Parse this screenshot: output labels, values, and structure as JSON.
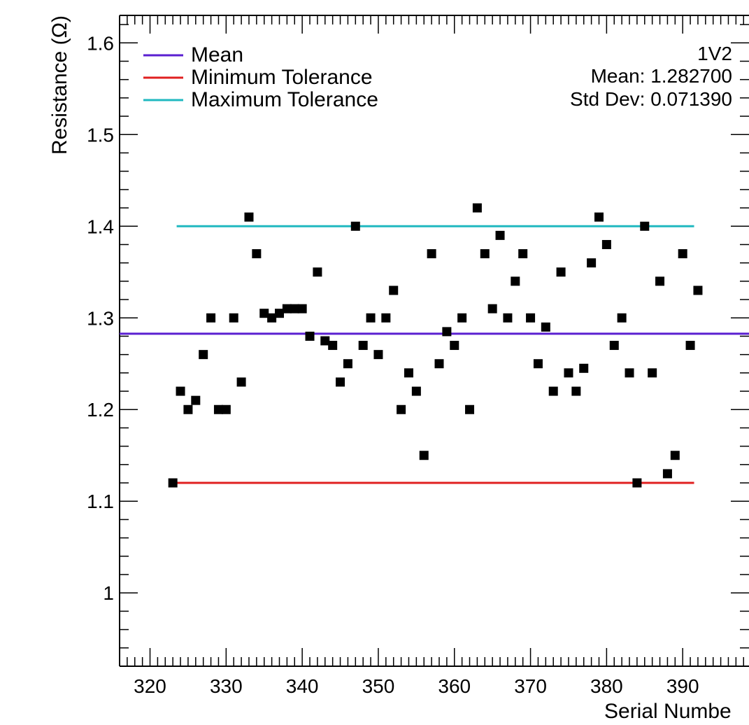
{
  "chart_data": {
    "type": "scatter",
    "ylabel": "Resistance (Ω)",
    "xlabel": "Serial Numbe",
    "xlim": [
      316,
      400
    ],
    "ylim": [
      0.92,
      1.63
    ],
    "x_ticks": [
      320,
      330,
      340,
      350,
      360,
      370,
      380,
      390
    ],
    "y_ticks": [
      1,
      1.1,
      1.2,
      1.3,
      1.4,
      1.5,
      1.6
    ],
    "grid": false,
    "legend_placement": "top-left",
    "legend": [
      {
        "label": "Mean",
        "color": "#5a1fd1"
      },
      {
        "label": "Minimum Tolerance",
        "color": "#e02020"
      },
      {
        "label": "Maximum Tolerance",
        "color": "#20b8c0"
      }
    ],
    "stats": {
      "name": "1V2",
      "mean": "Mean: 1.282700",
      "std": "Std Dev: 0.071390"
    },
    "reference_lines": [
      {
        "label": "Mean",
        "y": 1.2827,
        "x_range": [
          316,
          400
        ],
        "color": "#5a1fd1"
      },
      {
        "label": "Minimum Tolerance",
        "y": 1.12,
        "x_range": [
          323.5,
          391.5
        ],
        "color": "#e02020"
      },
      {
        "label": "Maximum Tolerance",
        "y": 1.4,
        "x_range": [
          323.5,
          391.5
        ],
        "color": "#20b8c0"
      }
    ],
    "marker_color": "#000000",
    "x": [
      323,
      324,
      325,
      326,
      327,
      328,
      329,
      330,
      331,
      332,
      333,
      334,
      335,
      336,
      337,
      338,
      339,
      340,
      341,
      342,
      343,
      344,
      345,
      346,
      347,
      348,
      349,
      350,
      351,
      352,
      353,
      354,
      355,
      356,
      357,
      358,
      359,
      360,
      361,
      362,
      363,
      364,
      365,
      366,
      367,
      368,
      369,
      370,
      371,
      372,
      373,
      374,
      375,
      376,
      377,
      378,
      379,
      380,
      381,
      382,
      383,
      384,
      385,
      386,
      387,
      388,
      389,
      390,
      391,
      392
    ],
    "y": [
      1.12,
      1.22,
      1.2,
      1.21,
      1.26,
      1.3,
      1.2,
      1.2,
      1.3,
      1.23,
      1.41,
      1.37,
      1.305,
      1.3,
      1.305,
      1.31,
      1.31,
      1.31,
      1.28,
      1.35,
      1.275,
      1.27,
      1.23,
      1.25,
      1.4,
      1.27,
      1.3,
      1.26,
      1.3,
      1.33,
      1.2,
      1.24,
      1.22,
      1.15,
      1.37,
      1.25,
      1.285,
      1.27,
      1.3,
      1.2,
      1.42,
      1.37,
      1.31,
      1.39,
      1.3,
      1.34,
      1.37,
      1.3,
      1.25,
      1.29,
      1.22,
      1.35,
      1.24,
      1.22,
      1.245,
      1.36,
      1.41,
      1.38,
      1.27,
      1.3,
      1.24,
      1.12,
      1.4,
      1.24,
      1.34,
      1.13,
      1.15,
      1.37,
      1.27,
      1.33
    ]
  }
}
